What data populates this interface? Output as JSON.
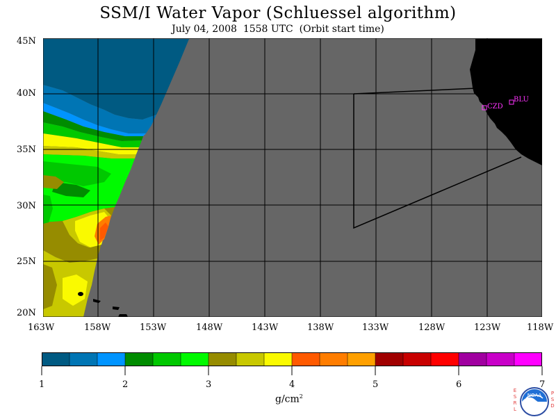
{
  "title": "SSM/I Water Vapor (Schluessel algorithm)",
  "subtitle": "July 04, 2008  1558 UTC  (Orbit start time)",
  "map": {
    "lat_labels": [
      "45N",
      "40N",
      "35N",
      "30N",
      "25N",
      "20N"
    ],
    "lon_labels": [
      "163W",
      "158W",
      "153W",
      "148W",
      "143W",
      "138W",
      "133W",
      "128W",
      "123W",
      "118W"
    ],
    "stations": [
      "CZD",
      "BLU"
    ],
    "colors": {
      "no_data": "#666666",
      "land": "#000000",
      "grid": "#000000",
      "station": "#ff33ff"
    }
  },
  "colorbar": {
    "ticks": [
      "1",
      "2",
      "3",
      "4",
      "5",
      "6",
      "7"
    ],
    "colors": [
      "#005a82",
      "#0075b4",
      "#0094ff",
      "#008c00",
      "#00c800",
      "#00fa00",
      "#968c00",
      "#c8c800",
      "#fafa00",
      "#ff5a00",
      "#ff7d00",
      "#ffa000",
      "#a00000",
      "#c80000",
      "#ff0000",
      "#a000a0",
      "#c800c8",
      "#ff00ff"
    ],
    "units_text": "g/cm",
    "units_sup": "2"
  },
  "logo": {
    "left_letters": [
      "E",
      "S",
      "R",
      "L"
    ],
    "right_letters": [
      "P",
      "S",
      "D"
    ],
    "text": "NOAA"
  }
}
